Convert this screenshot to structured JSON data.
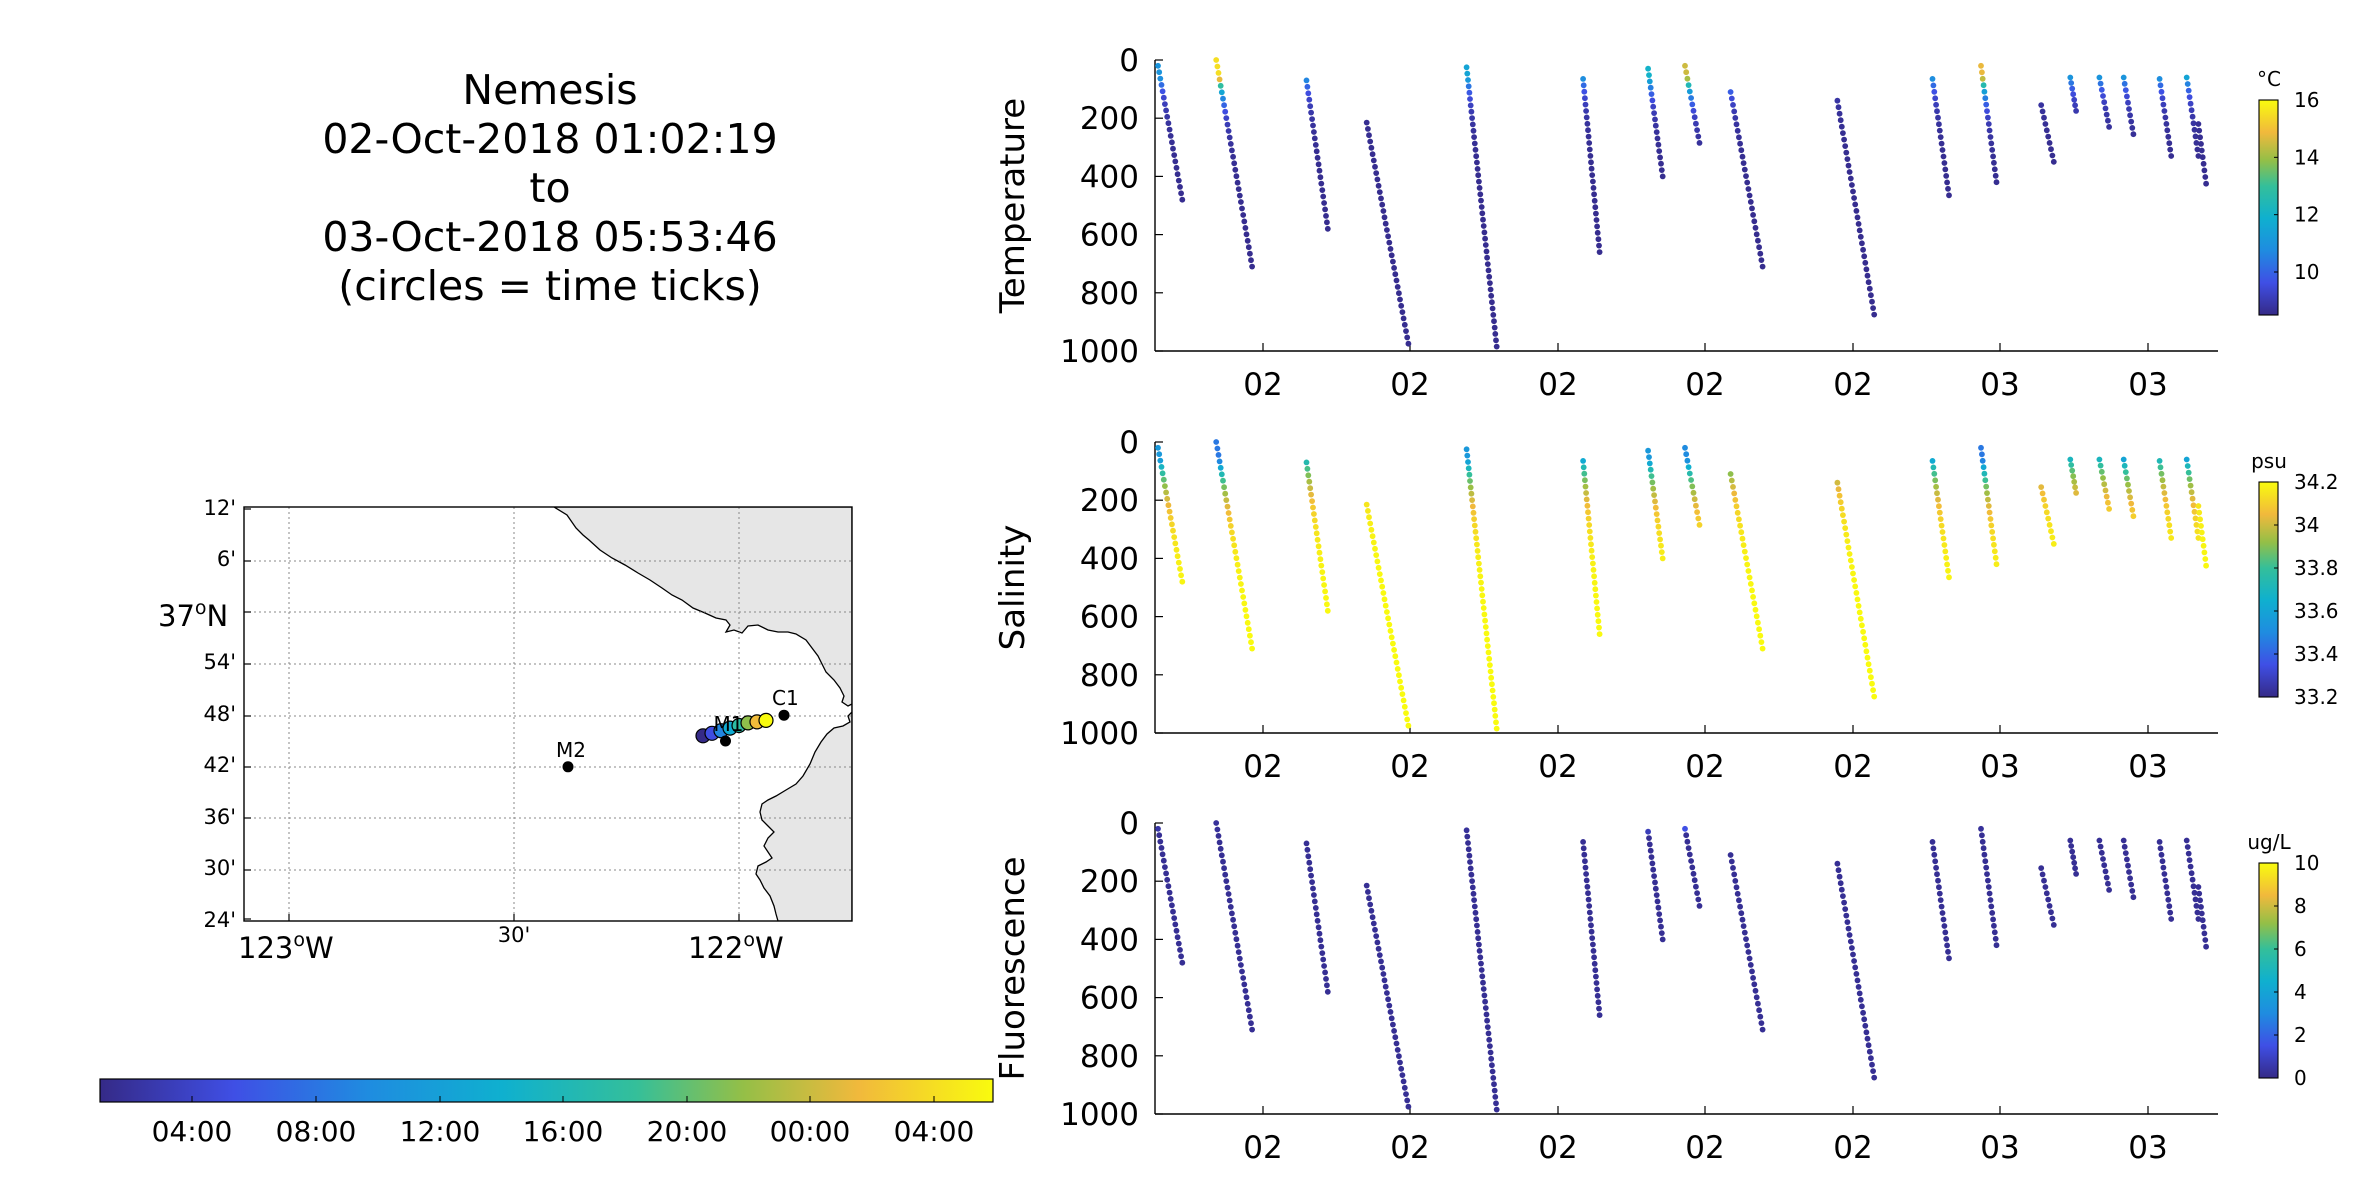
{
  "title": {
    "lines": [
      "Nemesis",
      "02-Oct-2018 01:02:19",
      "to",
      "03-Oct-2018 05:53:46",
      "(circles = time ticks)"
    ]
  },
  "map": {
    "lat_ticks": [
      "12'",
      "6'",
      "54'",
      "48'",
      "42'",
      "36'",
      "30'",
      "24'"
    ],
    "lat_major": {
      "label": "37",
      "deg": "o",
      "hemi": "N"
    },
    "lon_major": [
      {
        "label": "123",
        "deg": "o",
        "hemi": "W"
      },
      {
        "label": "122",
        "deg": "o",
        "hemi": "W"
      }
    ],
    "lon_minor": "30'",
    "stations": [
      {
        "name": "M2",
        "lon": -122.38,
        "lat": 36.7
      },
      {
        "name": "M1",
        "lon": -122.03,
        "lat": 36.75
      },
      {
        "name": "C1",
        "lon": -121.9,
        "lat": 36.8
      }
    ],
    "colors": {
      "land": "#e6e6e6",
      "grid": "#888888"
    }
  },
  "time_colorbar": {
    "labels": [
      "04:00",
      "08:00",
      "12:00",
      "16:00",
      "20:00",
      "00:00",
      "04:00"
    ]
  },
  "panels": [
    {
      "ylabel": "Temperature",
      "unit": "°C",
      "cb_ticks": [
        "16",
        "14",
        "12",
        "10"
      ],
      "var": "temp"
    },
    {
      "ylabel": "Salinity",
      "unit": "psu",
      "cb_ticks": [
        "34.2",
        "34",
        "33.8",
        "33.6",
        "33.4",
        "33.2"
      ],
      "var": "sal"
    },
    {
      "ylabel": "Fluorescence",
      "unit": "ug/L",
      "cb_ticks": [
        "10",
        "8",
        "6",
        "4",
        "2",
        "0"
      ],
      "var": "fluo"
    }
  ],
  "chart_data": {
    "type": "scatter",
    "x_tick_labels": [
      "02",
      "02",
      "02",
      "02",
      "02",
      "03",
      "03"
    ],
    "y_tick_labels": [
      "0",
      "200",
      "400",
      "600",
      "800",
      "1000"
    ],
    "ylim": [
      0,
      1000
    ],
    "y_reversed": true,
    "clim": {
      "temp": [
        8.5,
        16
      ],
      "sal": [
        33.2,
        34.2
      ],
      "fluo": [
        0,
        10
      ]
    },
    "profiles": [
      {
        "t0": 0.0,
        "t1": 0.25,
        "d0": 20,
        "d1": 480
      },
      {
        "t0": 0.6,
        "t1": 0.97,
        "d0": 0,
        "d1": 710
      },
      {
        "t0": 1.53,
        "t1": 1.75,
        "d0": 70,
        "d1": 580
      },
      {
        "t0": 2.15,
        "t1": 2.58,
        "d0": 215,
        "d1": 975
      },
      {
        "t0": 3.18,
        "t1": 3.49,
        "d0": 25,
        "d1": 985
      },
      {
        "t0": 4.38,
        "t1": 4.55,
        "d0": 65,
        "d1": 660
      },
      {
        "t0": 5.05,
        "t1": 5.2,
        "d0": 30,
        "d1": 400
      },
      {
        "t0": 5.43,
        "t1": 5.58,
        "d0": 20,
        "d1": 285
      },
      {
        "t0": 5.9,
        "t1": 6.23,
        "d0": 110,
        "d1": 710
      },
      {
        "t0": 7.0,
        "t1": 7.38,
        "d0": 140,
        "d1": 875
      },
      {
        "t0": 7.98,
        "t1": 8.15,
        "d0": 65,
        "d1": 465
      },
      {
        "t0": 8.48,
        "t1": 8.64,
        "d0": 20,
        "d1": 420
      },
      {
        "t0": 9.1,
        "t1": 9.23,
        "d0": 155,
        "d1": 350
      },
      {
        "t0": 9.4,
        "t1": 9.46,
        "d0": 60,
        "d1": 175
      },
      {
        "t0": 9.7,
        "t1": 9.8,
        "d0": 60,
        "d1": 230
      },
      {
        "t0": 9.95,
        "t1": 10.05,
        "d0": 60,
        "d1": 255
      },
      {
        "t0": 10.32,
        "t1": 10.44,
        "d0": 65,
        "d1": 330
      },
      {
        "t0": 10.6,
        "t1": 10.72,
        "d0": 60,
        "d1": 330
      },
      {
        "t0": 10.72,
        "t1": 10.8,
        "d0": 220,
        "d1": 425
      }
    ],
    "temp_surface": [
      11.0,
      15.5,
      11.0,
      9.0,
      11.5,
      11.0,
      12.0,
      14.5,
      11.5,
      9.5,
      11.0,
      14.8,
      9.5,
      11.0,
      11.0,
      11.0,
      11.0,
      11.5,
      9.5
    ],
    "sal_surface": [
      33.55,
      33.45,
      33.7,
      34.0,
      33.55,
      33.6,
      33.55,
      33.5,
      33.75,
      33.8,
      33.6,
      33.45,
      33.8,
      33.7,
      33.7,
      33.6,
      33.7,
      33.6,
      34.0
    ],
    "fluo_surface": [
      0.5,
      0.3,
      0.3,
      0.3,
      0.3,
      0.3,
      0.8,
      1.5,
      0.3,
      0.3,
      0.3,
      0.3,
      0.3,
      0.3,
      0.3,
      0.3,
      0.3,
      0.3,
      0.3
    ],
    "track": {
      "lon": [
        -122.08,
        -122.06,
        -122.04,
        -122.02,
        -122.0,
        -121.98,
        -121.96,
        -121.94
      ],
      "lat": [
        36.76,
        36.765,
        36.77,
        36.775,
        36.78,
        36.785,
        36.787,
        36.79
      ]
    }
  }
}
